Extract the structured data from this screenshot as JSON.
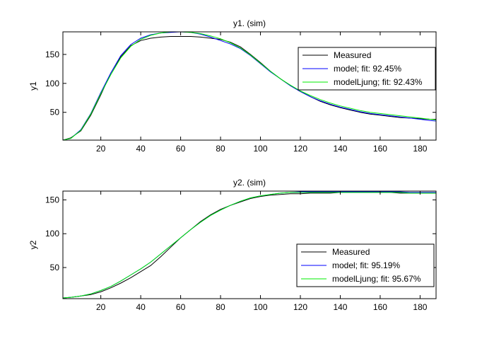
{
  "chart_data": [
    {
      "type": "line",
      "title": "y1. (sim)",
      "xlabel": "",
      "ylabel": "y1",
      "xlim": [
        1,
        188
      ],
      "ylim": [
        2,
        189
      ],
      "xticks": [
        20,
        40,
        60,
        80,
        100,
        120,
        140,
        160,
        180
      ],
      "yticks": [
        50,
        100,
        150
      ],
      "legend_position": "upper-right",
      "series": [
        {
          "name": "Measured",
          "color": "#000000",
          "x": [
            1,
            5,
            10,
            15,
            20,
            25,
            30,
            35,
            40,
            45,
            50,
            55,
            60,
            65,
            70,
            75,
            80,
            85,
            90,
            95,
            100,
            105,
            110,
            115,
            120,
            125,
            130,
            135,
            140,
            145,
            150,
            155,
            160,
            165,
            170,
            175,
            180,
            185,
            188
          ],
          "values": [
            2,
            6,
            18,
            45,
            80,
            118,
            146,
            165,
            174,
            178,
            180,
            181,
            181,
            181,
            180,
            178,
            176,
            171,
            163,
            150,
            136,
            121,
            108,
            96,
            86,
            77,
            69,
            63,
            58,
            54,
            50,
            47,
            45,
            43,
            41,
            40,
            39,
            38,
            38
          ]
        },
        {
          "name": "model; fit: 92.45%",
          "color": "#0000ff",
          "x": [
            1,
            5,
            10,
            15,
            20,
            25,
            30,
            35,
            40,
            45,
            50,
            55,
            60,
            65,
            70,
            75,
            80,
            85,
            90,
            95,
            100,
            105,
            110,
            115,
            120,
            125,
            130,
            135,
            140,
            145,
            150,
            155,
            160,
            165,
            170,
            175,
            180,
            185,
            188
          ],
          "values": [
            2,
            5,
            20,
            48,
            84,
            118,
            148,
            167,
            178,
            184,
            187,
            188,
            189,
            188,
            185,
            180,
            174,
            168,
            160,
            148,
            134,
            120,
            108,
            96,
            86,
            77,
            70,
            64,
            59,
            55,
            51,
            48,
            46,
            44,
            42,
            40,
            38,
            36,
            35
          ]
        },
        {
          "name": "modelLjung; fit: 92.43%",
          "color": "#00ee00",
          "x": [
            1,
            5,
            10,
            15,
            20,
            25,
            30,
            35,
            40,
            45,
            50,
            55,
            60,
            65,
            70,
            75,
            80,
            85,
            90,
            95,
            100,
            105,
            110,
            115,
            120,
            125,
            130,
            135,
            140,
            145,
            150,
            155,
            160,
            165,
            170,
            175,
            180,
            185,
            188
          ],
          "values": [
            2,
            5,
            19,
            47,
            82,
            115,
            144,
            164,
            176,
            183,
            187,
            189,
            189,
            188,
            186,
            182,
            177,
            170,
            161,
            149,
            135,
            121,
            108,
            97,
            87,
            79,
            72,
            66,
            61,
            57,
            53,
            50,
            48,
            46,
            44,
            42,
            40,
            38,
            37
          ]
        }
      ]
    },
    {
      "type": "line",
      "title": "y2. (sim)",
      "xlabel": "",
      "ylabel": "y2",
      "xlim": [
        1,
        188
      ],
      "ylim": [
        4,
        163
      ],
      "xticks": [
        20,
        40,
        60,
        80,
        100,
        120,
        140,
        160,
        180
      ],
      "yticks": [
        50,
        100,
        150
      ],
      "legend_position": "lower-right",
      "series": [
        {
          "name": "Measured",
          "color": "#000000",
          "x": [
            1,
            5,
            10,
            15,
            20,
            25,
            30,
            35,
            40,
            45,
            50,
            55,
            60,
            65,
            70,
            75,
            80,
            85,
            90,
            95,
            100,
            105,
            110,
            115,
            120,
            125,
            130,
            135,
            140,
            145,
            150,
            155,
            160,
            165,
            170,
            175,
            180,
            185,
            188
          ],
          "values": [
            5,
            6,
            8,
            10,
            14,
            20,
            27,
            35,
            44,
            53,
            66,
            80,
            94,
            106,
            118,
            128,
            136,
            142,
            147,
            152,
            155,
            157,
            158,
            159,
            159,
            160,
            160,
            160,
            161,
            161,
            161,
            161,
            161,
            161,
            160,
            160,
            160,
            160,
            160
          ]
        },
        {
          "name": "model; fit: 95.19%",
          "color": "#0000ff",
          "x": [
            1,
            5,
            10,
            15,
            20,
            25,
            30,
            35,
            40,
            45,
            50,
            55,
            60,
            65,
            70,
            75,
            80,
            85,
            90,
            95,
            100,
            105,
            110,
            115,
            120,
            125,
            130,
            135,
            140,
            145,
            150,
            155,
            160,
            165,
            170,
            175,
            180,
            185,
            188
          ],
          "values": [
            5,
            6,
            8,
            11,
            16,
            22,
            30,
            39,
            48,
            58,
            70,
            82,
            94,
            106,
            117,
            127,
            135,
            142,
            148,
            153,
            156,
            158,
            160,
            161,
            162,
            162,
            162,
            162,
            162,
            162,
            162,
            162,
            162,
            162,
            162,
            161,
            161,
            161,
            161
          ]
        },
        {
          "name": "modelLjung; fit: 95.67%",
          "color": "#00ee00",
          "x": [
            1,
            5,
            10,
            15,
            20,
            25,
            30,
            35,
            40,
            45,
            50,
            55,
            60,
            65,
            70,
            75,
            80,
            85,
            90,
            95,
            100,
            105,
            110,
            115,
            120,
            125,
            130,
            135,
            140,
            145,
            150,
            155,
            160,
            165,
            170,
            175,
            180,
            185,
            188
          ],
          "values": [
            5,
            6,
            8,
            11,
            16,
            22,
            30,
            39,
            48,
            58,
            70,
            82,
            94,
            106,
            117,
            127,
            135,
            142,
            148,
            153,
            156,
            158,
            160,
            161,
            161,
            161,
            161,
            161,
            161,
            161,
            161,
            161,
            161,
            161,
            161,
            160,
            160,
            160,
            160
          ]
        }
      ]
    }
  ]
}
